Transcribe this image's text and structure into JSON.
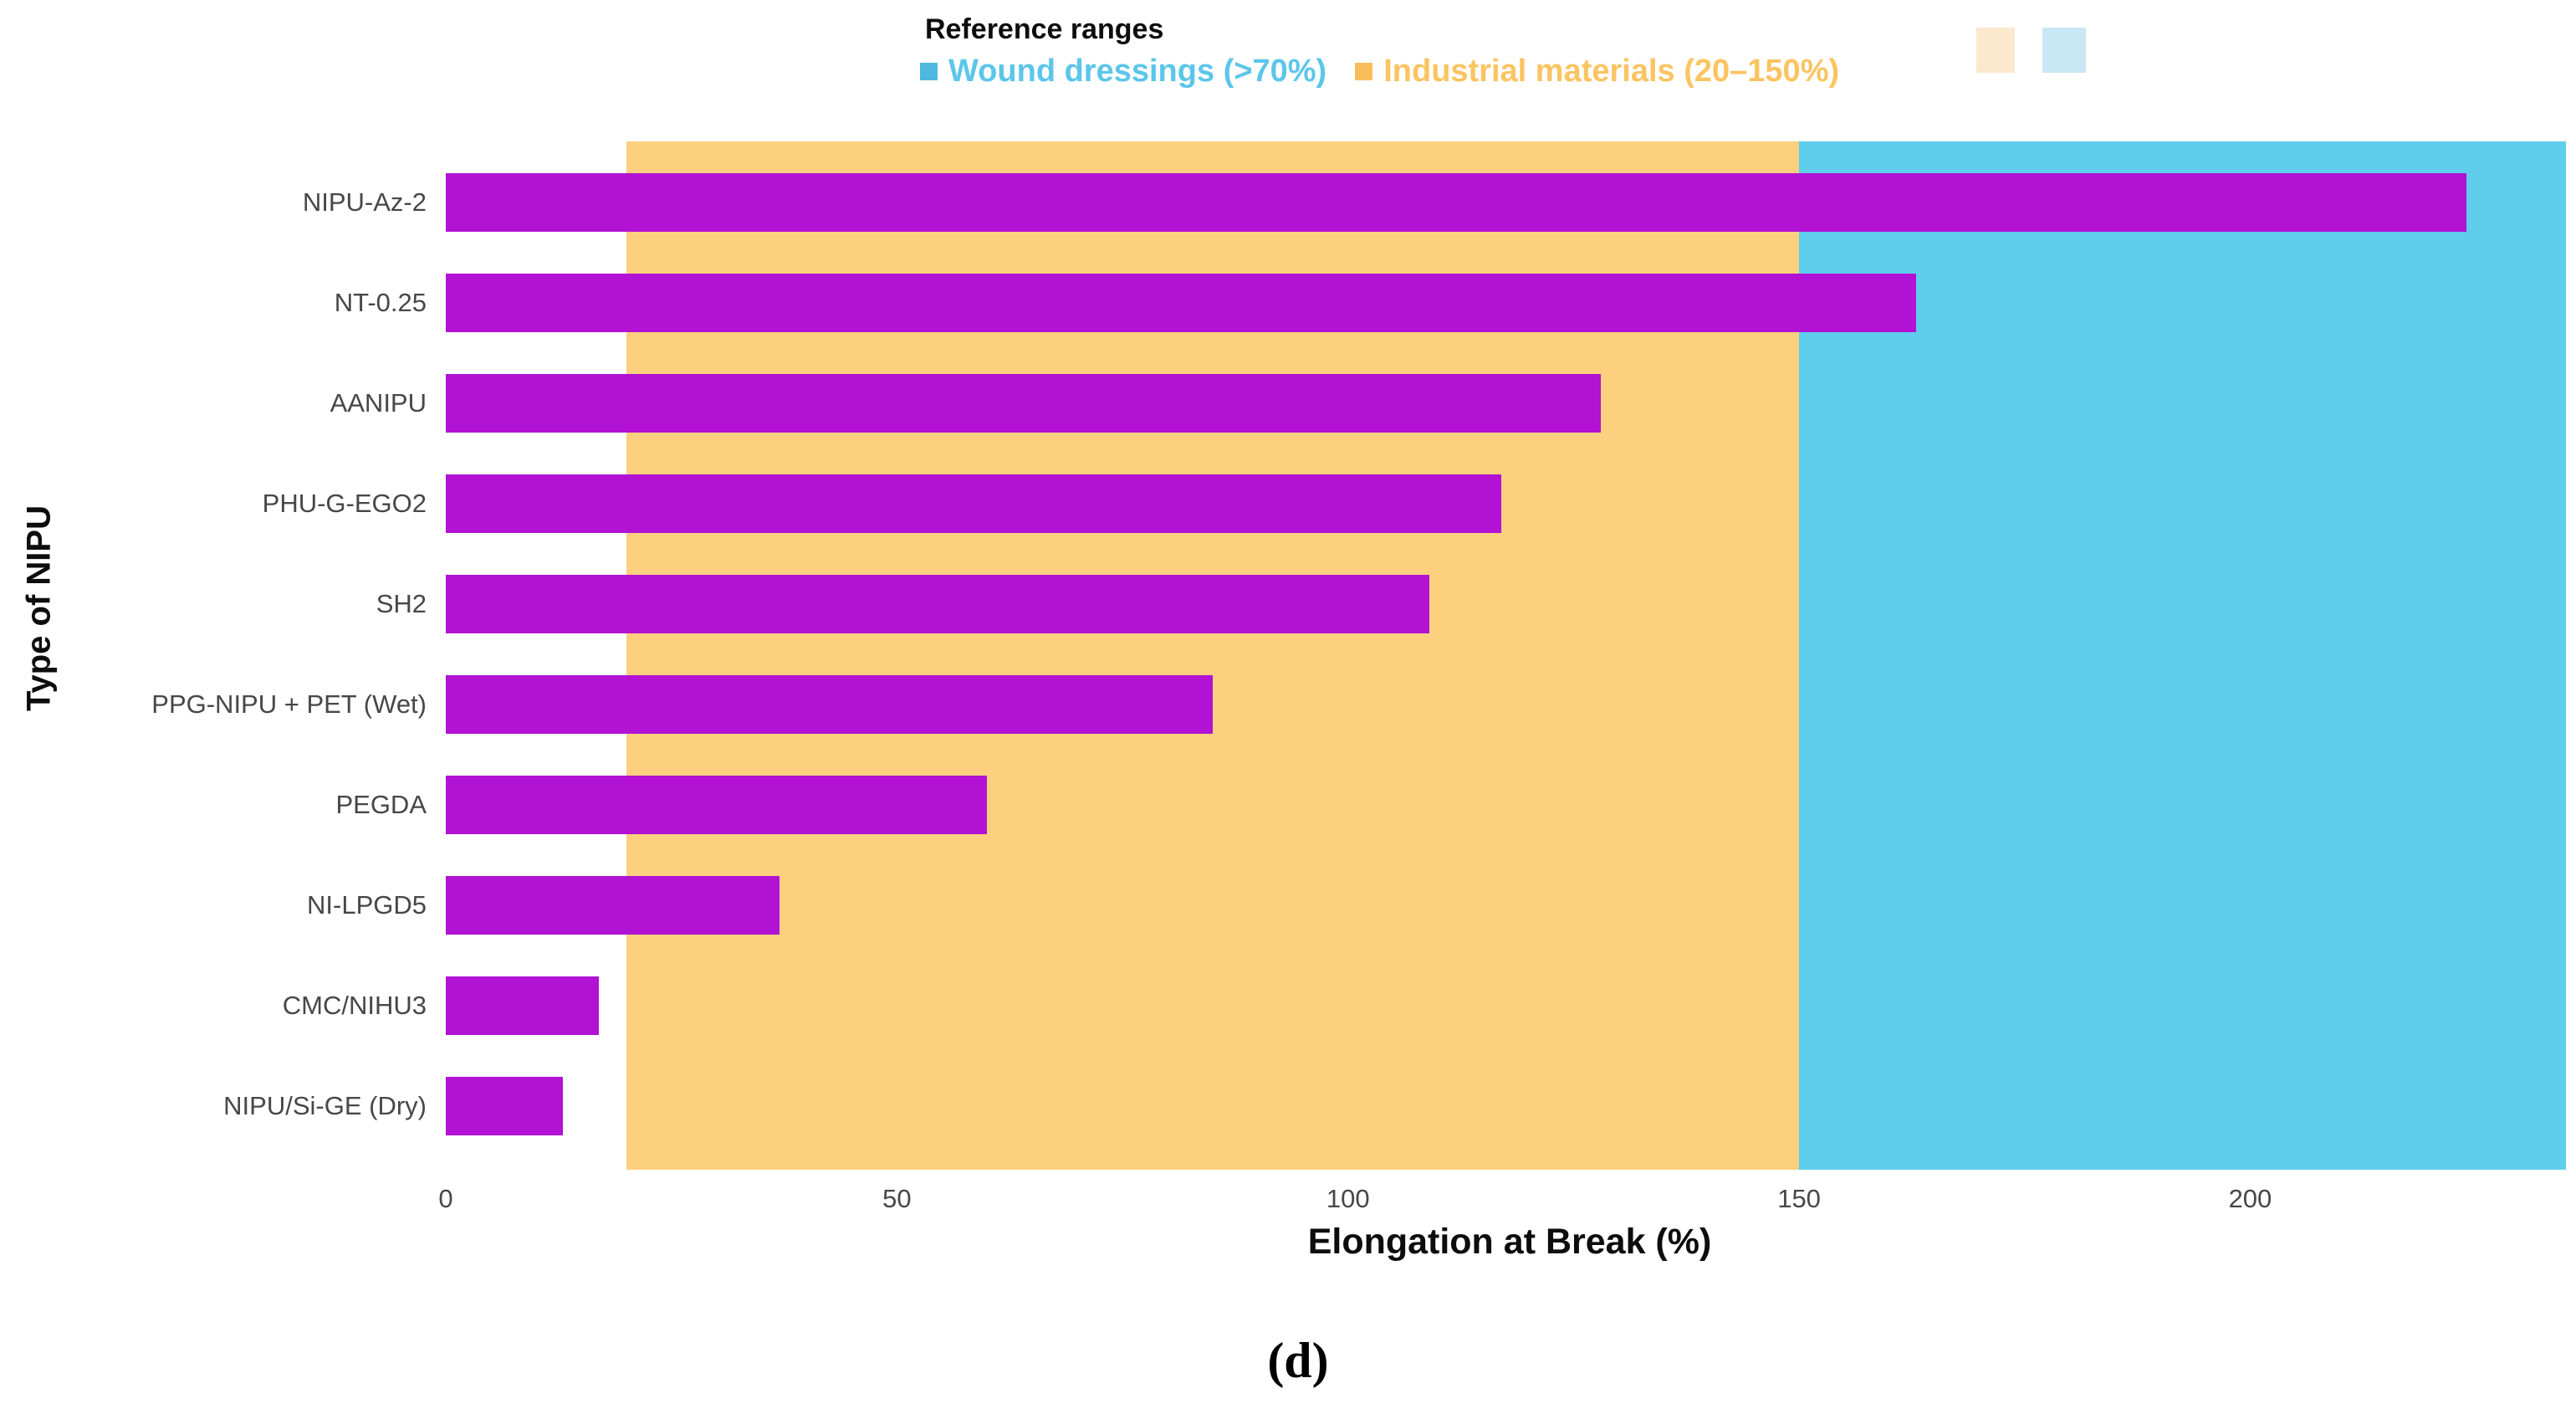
{
  "figure": {
    "caption": "(d)"
  },
  "legend": {
    "title": "Reference ranges",
    "items": [
      {
        "label": "Wound dressings (>70%)",
        "text_color": "#5BC6E9",
        "swatch_color": "#4FB8DE"
      },
      {
        "label": "Industrial materials (20–150%)",
        "text_color": "#FBC461",
        "swatch_color": "#F9BE5A"
      }
    ],
    "key_squares": [
      {
        "name": "industrial-key",
        "color": "#FBE8CD",
        "x": 2363,
        "width": 46
      },
      {
        "name": "wound-key",
        "color": "#CAE7F6",
        "x": 2442,
        "width": 52
      }
    ]
  },
  "chart_data": {
    "type": "bar",
    "orientation": "horizontal",
    "xlabel": "Elongation at Break (%)",
    "ylabel": "Type of NIPU",
    "xlim": [
      0,
      235
    ],
    "xticks": [
      0,
      50,
      100,
      150,
      200
    ],
    "grid": false,
    "bar_color": "#B112D4",
    "categories": [
      "NIPU-Az-2",
      "NT-0.25",
      "AANIPU",
      "PHU-G-EGO2",
      "SH2",
      "PPG-NIPU + PET  (Wet)",
      "PEGDA",
      "NI-LPGD5",
      "CMC/NIHU3",
      "NIPU/Si-GE (Dry)"
    ],
    "values": [
      224,
      163,
      128,
      117,
      109,
      85,
      60,
      37,
      17,
      13
    ],
    "reference_bands": [
      {
        "name": "Wound dressings",
        "range_label": ">70%",
        "from": 70,
        "to": 235,
        "color": "#5FCEEC"
      },
      {
        "name": "Industrial materials",
        "range_label": "20–150%",
        "from": 20,
        "to": 150,
        "color": "#FCD07E"
      }
    ]
  }
}
